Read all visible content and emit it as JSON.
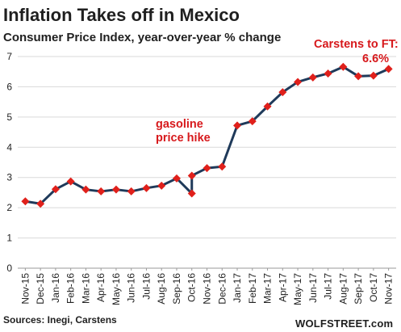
{
  "chart_data": {
    "type": "line",
    "title": "Inflation Takes off in Mexico",
    "subtitle": "Consumer Price Index, year-over-year % change",
    "xlabel": "",
    "ylabel": "",
    "ylim": [
      0,
      7
    ],
    "yticks": [
      "0",
      "1",
      "2",
      "3",
      "4",
      "5",
      "6",
      "7"
    ],
    "grid": true,
    "legend": "none",
    "series": [
      {
        "color": "#1f3a5a",
        "marker_color": "#e0201b",
        "points": [
          {
            "x": "Nov-15",
            "y": 2.21
          },
          {
            "x": "Dec-15",
            "y": 2.13
          },
          {
            "x": "Jan-16",
            "y": 2.61
          },
          {
            "x": "Feb-16",
            "y": 2.87
          },
          {
            "x": "Mar-16",
            "y": 2.6
          },
          {
            "x": "Apr-16",
            "y": 2.54
          },
          {
            "x": "May-16",
            "y": 2.6
          },
          {
            "x": "Jun-16",
            "y": 2.54
          },
          {
            "x": "Jul-16",
            "y": 2.65
          },
          {
            "x": "Aug-16",
            "y": 2.73
          },
          {
            "x": "Sep-16",
            "y": 2.97
          },
          {
            "x": "Oct-16a",
            "y": 2.47
          },
          {
            "x": "Oct-16b",
            "y": 3.06
          },
          {
            "x": "Nov-16",
            "y": 3.31
          },
          {
            "x": "Dec-16",
            "y": 3.36
          },
          {
            "x": "Jan-17",
            "y": 4.72
          },
          {
            "x": "Feb-17",
            "y": 4.86
          },
          {
            "x": "Mar-17",
            "y": 5.35
          },
          {
            "x": "Apr-17",
            "y": 5.82
          },
          {
            "x": "May-17",
            "y": 6.16
          },
          {
            "x": "Jun-17",
            "y": 6.31
          },
          {
            "x": "Jul-17",
            "y": 6.44
          },
          {
            "x": "Aug-17",
            "y": 6.66
          },
          {
            "x": "Sep-17",
            "y": 6.35
          },
          {
            "x": "Oct-17",
            "y": 6.37
          },
          {
            "x": "Nov-17",
            "y": 6.59
          }
        ]
      }
    ],
    "categories": [
      "Nov-15",
      "Dec-15",
      "Jan-16",
      "Feb-16",
      "Mar-16",
      "Apr-16",
      "May-16",
      "Jun-16",
      "Jul-16",
      "Aug-16",
      "Sep-16",
      "Oct-16",
      "Nov-16",
      "Dec-16",
      "Jan-17",
      "Feb-17",
      "Mar-17",
      "Apr-17",
      "May-17",
      "Jun-17",
      "Jul-17",
      "Aug-17",
      "Sep-17",
      "Oct-17",
      "Nov-17"
    ],
    "annotations": [
      {
        "text": "gasoline",
        "anchor": "Oct-16"
      },
      {
        "text": "price hike",
        "anchor": "Oct-16"
      },
      {
        "text": "Carstens to FT:",
        "anchor": "Nov-17"
      },
      {
        "text": "6.6%",
        "anchor": "Nov-17"
      }
    ]
  },
  "footer": {
    "source": "Sources: Inegi, Carstens",
    "brand": "WOLFSTREET.com"
  }
}
